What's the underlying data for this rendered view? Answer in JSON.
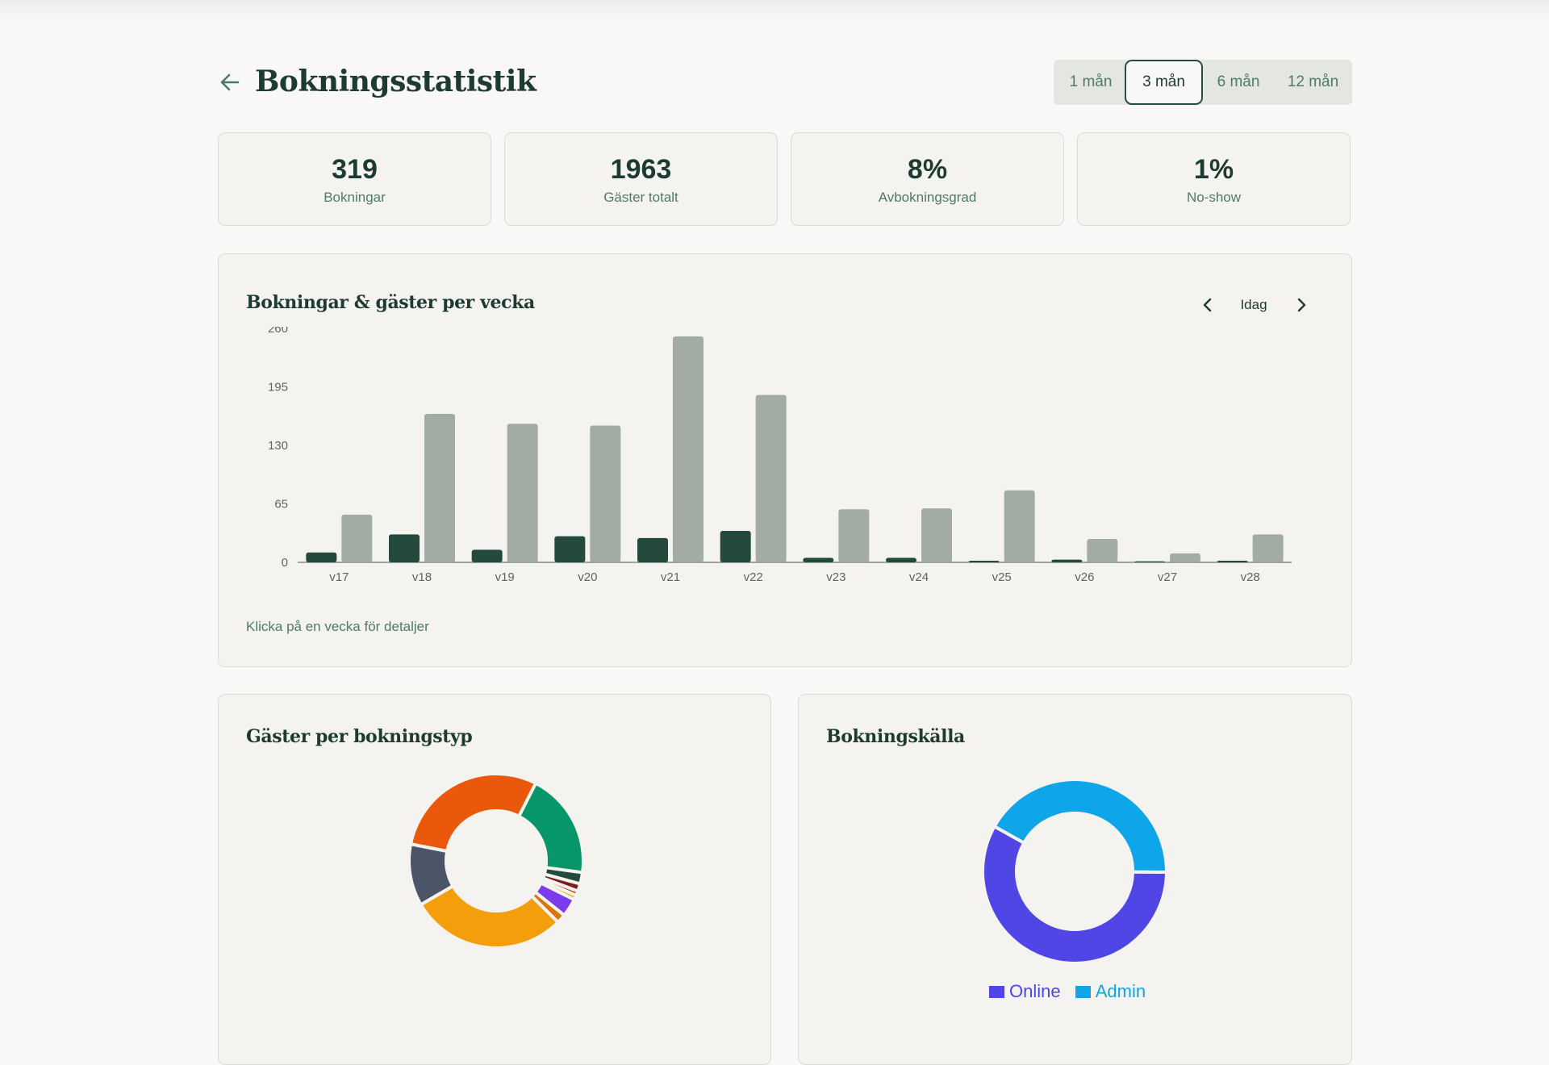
{
  "header": {
    "title": "Bokningsstatistik",
    "range_options": [
      "1 mån",
      "3 mån",
      "6 mån",
      "12 mån"
    ],
    "active_range": "3 mån"
  },
  "stats": [
    {
      "value": "319",
      "label": "Bokningar"
    },
    {
      "value": "1963",
      "label": "Gäster totalt"
    },
    {
      "value": "8%",
      "label": "Avbokningsgrad"
    },
    {
      "value": "1%",
      "label": "No-show"
    }
  ],
  "weekly": {
    "title": "Bokningar & gäster per vecka",
    "nav_label": "Idag",
    "hint": "Klicka på en vecka för detaljer"
  },
  "chart_data": [
    {
      "type": "bar",
      "title": "Bokningar & gäster per vecka",
      "categories": [
        "v17",
        "v18",
        "v19",
        "v20",
        "v21",
        "v22",
        "v23",
        "v24",
        "v25",
        "v26",
        "v27",
        "v28"
      ],
      "series": [
        {
          "values": [
            11,
            31,
            14,
            29,
            27,
            35,
            5,
            5,
            1,
            3,
            0,
            1
          ],
          "color": "#234a3c"
        },
        {
          "values": [
            53,
            165,
            154,
            152,
            251,
            186,
            59,
            60,
            80,
            26,
            10,
            31
          ],
          "color": "#a3aca3"
        }
      ],
      "ylim": [
        0,
        260
      ],
      "yticks": [
        0,
        65,
        130,
        195,
        260
      ],
      "grid": false
    },
    {
      "type": "pie",
      "title": "Gäster per bokningstyp",
      "donut": true,
      "values": [
        18.5,
        2.0,
        1.3,
        0.8,
        0.8,
        3.2,
        1.6,
        27.5,
        10.8,
        27.7
      ],
      "colors": [
        "#079669",
        "#234a3c",
        "#7f1d1d",
        "#c2410c",
        "#eab308",
        "#7c3aed",
        "#d97706",
        "#f59e0b",
        "#4b5567",
        "#ea580c"
      ]
    },
    {
      "type": "pie",
      "title": "Bokningskälla",
      "donut": true,
      "labels": [
        "Online",
        "Admin"
      ],
      "values": [
        58,
        42
      ],
      "colors": [
        "#4f46e5",
        "#0ea5e9"
      ],
      "legend": "bottom"
    }
  ],
  "types_card": {
    "title": "Gäster per bokningstyp"
  },
  "source_card": {
    "title": "Bokningskälla",
    "legend": [
      {
        "label": "Online",
        "color": "#4f46e5"
      },
      {
        "label": "Admin",
        "color": "#0ea5e9"
      }
    ]
  }
}
